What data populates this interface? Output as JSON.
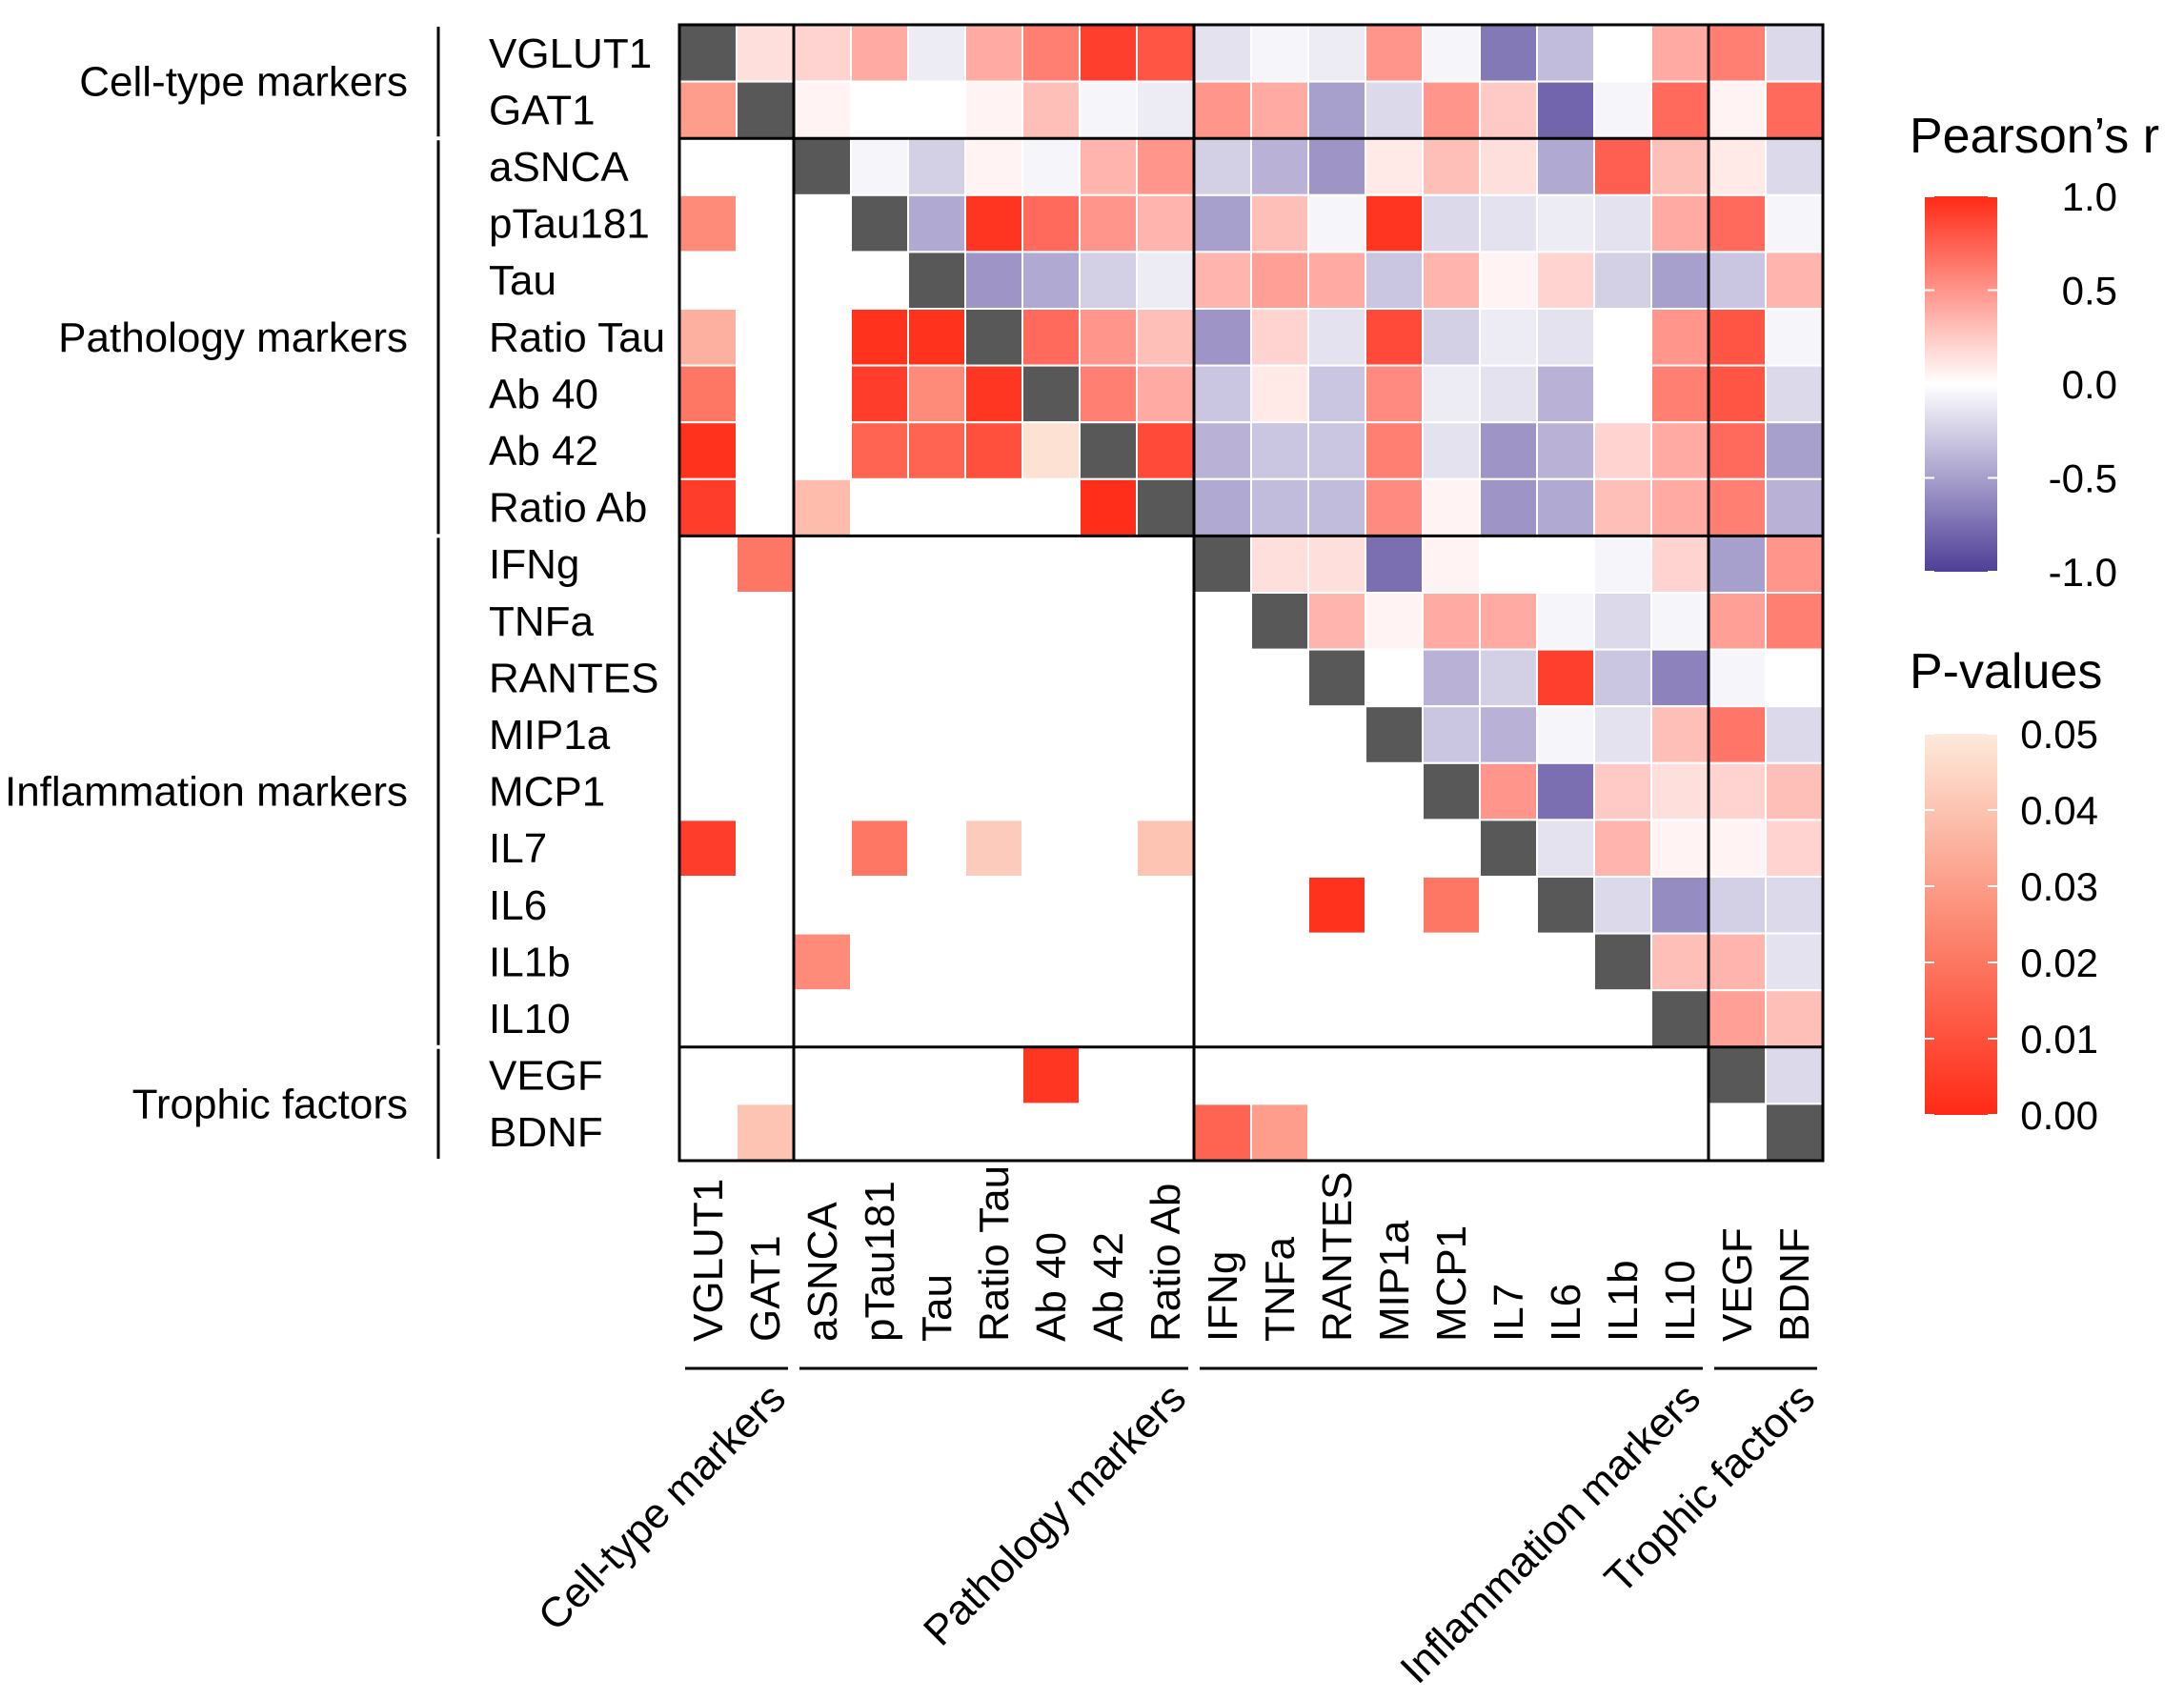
{
  "chart_data": {
    "type": "heatmap",
    "description_lower_upper": "upper triangle = Pearson's r, lower triangle = p-values (only significant shown)",
    "variables": [
      "VGLUT1",
      "GAT1",
      "aSNCA",
      "pTau181",
      "Tau",
      "Ratio Tau",
      "Ab 40",
      "Ab 42",
      "Ratio Ab",
      "IFNg",
      "TNFa",
      "RANTES",
      "MIP1a",
      "MCP1",
      "IL7",
      "IL6",
      "IL1b",
      "IL10",
      "VEGF",
      "BDNF"
    ],
    "groups": [
      {
        "name": "Cell-type markers",
        "start": 0,
        "end": 1
      },
      {
        "name": "Pathology markers",
        "start": 2,
        "end": 8
      },
      {
        "name": "Inflammation markers",
        "start": 9,
        "end": 17
      },
      {
        "name": "Trophic factors",
        "start": 18,
        "end": 19
      }
    ],
    "pearson_r": [
      [
        null,
        0.15,
        0.2,
        0.4,
        -0.1,
        0.4,
        0.6,
        0.9,
        0.8,
        -0.15,
        -0.05,
        -0.1,
        0.5,
        -0.05,
        -0.7,
        -0.35,
        0.0,
        0.4,
        0.6,
        -0.2
      ],
      [
        null,
        null,
        0.05,
        0.0,
        0.0,
        0.05,
        0.3,
        -0.05,
        -0.1,
        0.5,
        0.4,
        -0.5,
        -0.2,
        0.5,
        0.25,
        -0.8,
        -0.05,
        0.7,
        0.05,
        0.7
      ],
      [
        null,
        null,
        null,
        -0.05,
        -0.25,
        0.05,
        -0.05,
        0.35,
        0.5,
        -0.25,
        -0.4,
        -0.55,
        0.1,
        0.3,
        0.15,
        -0.45,
        0.75,
        0.3,
        0.1,
        -0.2
      ],
      [
        null,
        null,
        null,
        null,
        -0.45,
        0.95,
        0.7,
        0.5,
        0.35,
        -0.5,
        0.3,
        -0.05,
        0.95,
        -0.2,
        -0.15,
        -0.1,
        -0.15,
        0.4,
        0.7,
        -0.05
      ],
      [
        null,
        null,
        null,
        null,
        null,
        -0.55,
        -0.45,
        -0.25,
        -0.1,
        0.35,
        0.45,
        0.4,
        -0.3,
        0.35,
        0.05,
        0.2,
        -0.25,
        -0.5,
        -0.3,
        0.35
      ],
      [
        null,
        null,
        null,
        null,
        null,
        null,
        0.7,
        0.5,
        0.3,
        -0.55,
        0.2,
        -0.15,
        0.85,
        -0.25,
        -0.1,
        -0.15,
        0.0,
        0.5,
        0.8,
        -0.05
      ],
      [
        null,
        null,
        null,
        null,
        null,
        null,
        null,
        0.6,
        0.4,
        -0.3,
        0.1,
        -0.3,
        0.55,
        -0.1,
        -0.15,
        -0.4,
        0.0,
        0.6,
        0.8,
        -0.2
      ],
      [
        null,
        null,
        null,
        null,
        null,
        null,
        null,
        null,
        0.85,
        -0.4,
        -0.3,
        -0.3,
        0.6,
        -0.15,
        -0.55,
        -0.4,
        0.2,
        0.4,
        0.7,
        -0.5
      ],
      [
        null,
        null,
        null,
        null,
        null,
        null,
        null,
        null,
        null,
        -0.45,
        -0.35,
        -0.35,
        0.55,
        0.05,
        -0.55,
        -0.45,
        0.3,
        0.4,
        0.6,
        -0.4
      ],
      [
        null,
        null,
        null,
        null,
        null,
        null,
        null,
        null,
        null,
        null,
        0.15,
        0.15,
        -0.75,
        0.05,
        0.0,
        0.0,
        -0.05,
        0.2,
        -0.5,
        0.5
      ],
      [
        null,
        null,
        null,
        null,
        null,
        null,
        null,
        null,
        null,
        null,
        null,
        0.35,
        0.05,
        0.4,
        0.4,
        -0.05,
        -0.2,
        -0.05,
        0.45,
        0.6
      ],
      [
        null,
        null,
        null,
        null,
        null,
        null,
        null,
        null,
        null,
        null,
        null,
        null,
        0.0,
        -0.4,
        -0.25,
        0.9,
        -0.3,
        -0.65,
        -0.05,
        0.0
      ],
      [
        null,
        null,
        null,
        null,
        null,
        null,
        null,
        null,
        null,
        null,
        null,
        null,
        null,
        -0.3,
        -0.4,
        -0.05,
        -0.15,
        0.3,
        0.65,
        -0.2
      ],
      [
        null,
        null,
        null,
        null,
        null,
        null,
        null,
        null,
        null,
        null,
        null,
        null,
        null,
        null,
        0.5,
        -0.75,
        0.25,
        0.15,
        0.2,
        0.3
      ],
      [
        null,
        null,
        null,
        null,
        null,
        null,
        null,
        null,
        null,
        null,
        null,
        null,
        null,
        null,
        null,
        -0.15,
        0.35,
        0.05,
        0.05,
        0.2
      ],
      [
        null,
        null,
        null,
        null,
        null,
        null,
        null,
        null,
        null,
        null,
        null,
        null,
        null,
        null,
        null,
        null,
        -0.2,
        -0.6,
        -0.25,
        -0.2
      ],
      [
        null,
        null,
        null,
        null,
        null,
        null,
        null,
        null,
        null,
        null,
        null,
        null,
        null,
        null,
        null,
        null,
        null,
        0.3,
        0.35,
        -0.15
      ],
      [
        null,
        null,
        null,
        null,
        null,
        null,
        null,
        null,
        null,
        null,
        null,
        null,
        null,
        null,
        null,
        null,
        null,
        null,
        0.45,
        0.3
      ],
      [
        null,
        null,
        null,
        null,
        null,
        null,
        null,
        null,
        null,
        null,
        null,
        null,
        null,
        null,
        null,
        null,
        null,
        null,
        null,
        -0.2
      ],
      [
        null,
        null,
        null,
        null,
        null,
        null,
        null,
        null,
        null,
        null,
        null,
        null,
        null,
        null,
        null,
        null,
        null,
        null,
        null,
        null
      ]
    ],
    "p_values_significant": [
      {
        "row": "GAT1",
        "col": "VGLUT1",
        "p": 0.03
      },
      {
        "row": "pTau181",
        "col": "VGLUT1",
        "p": 0.025
      },
      {
        "row": "Ratio Tau",
        "col": "VGLUT1",
        "p": 0.035
      },
      {
        "row": "Ab 40",
        "col": "VGLUT1",
        "p": 0.02
      },
      {
        "row": "Ab 42",
        "col": "VGLUT1",
        "p": 0.002
      },
      {
        "row": "Ratio Ab",
        "col": "VGLUT1",
        "p": 0.005
      },
      {
        "row": "IFNg",
        "col": "GAT1",
        "p": 0.02
      },
      {
        "row": "IL7",
        "col": "VGLUT1",
        "p": 0.005
      },
      {
        "row": "BDNF",
        "col": "GAT1",
        "p": 0.04
      },
      {
        "row": "Ratio Tau",
        "col": "pTau181",
        "p": 0.002
      },
      {
        "row": "Ratio Tau",
        "col": "Tau",
        "p": 0.002
      },
      {
        "row": "Ab 40",
        "col": "pTau181",
        "p": 0.005
      },
      {
        "row": "Ab 40",
        "col": "Tau",
        "p": 0.025
      },
      {
        "row": "Ab 40",
        "col": "Ratio Tau",
        "p": 0.003
      },
      {
        "row": "Ab 42",
        "col": "pTau181",
        "p": 0.015
      },
      {
        "row": "Ab 42",
        "col": "Tau",
        "p": 0.015
      },
      {
        "row": "Ab 42",
        "col": "Ratio Tau",
        "p": 0.01
      },
      {
        "row": "Ab 42",
        "col": "Ab 40",
        "p": 0.048
      },
      {
        "row": "Ratio Ab",
        "col": "aSNCA",
        "p": 0.038
      },
      {
        "row": "Ratio Ab",
        "col": "Ab 42",
        "p": 0.001
      },
      {
        "row": "IL7",
        "col": "pTau181",
        "p": 0.02
      },
      {
        "row": "IL7",
        "col": "Ratio Tau",
        "p": 0.042
      },
      {
        "row": "IL7",
        "col": "Ratio Ab",
        "p": 0.04
      },
      {
        "row": "IL6",
        "col": "RANTES",
        "p": 0.002
      },
      {
        "row": "IL6",
        "col": "MCP1",
        "p": 0.02
      },
      {
        "row": "IL1b",
        "col": "aSNCA",
        "p": 0.025
      },
      {
        "row": "VEGF",
        "col": "Ab 40",
        "p": 0.003
      },
      {
        "row": "BDNF",
        "col": "IFNg",
        "p": 0.015
      },
      {
        "row": "BDNF",
        "col": "TNFa",
        "p": 0.03
      }
    ],
    "legend_r": {
      "title": "Pearson’s r",
      "ticks": [
        "1.0",
        "0.5",
        "0.0",
        "-0.5",
        "-1.0"
      ],
      "range": [
        -1.0,
        1.0
      ]
    },
    "legend_p": {
      "title": "P-values",
      "ticks": [
        "0.05",
        "0.04",
        "0.03",
        "0.02",
        "0.01",
        "0.00"
      ],
      "range": [
        0.0,
        0.05
      ]
    },
    "colors": {
      "positive": "#ff2a16",
      "negative": "#4f3f98",
      "neutral": "#ffffff",
      "diagonal": "#585858",
      "p_low": "#ff2a16",
      "p_high": "#fdeadb"
    }
  }
}
